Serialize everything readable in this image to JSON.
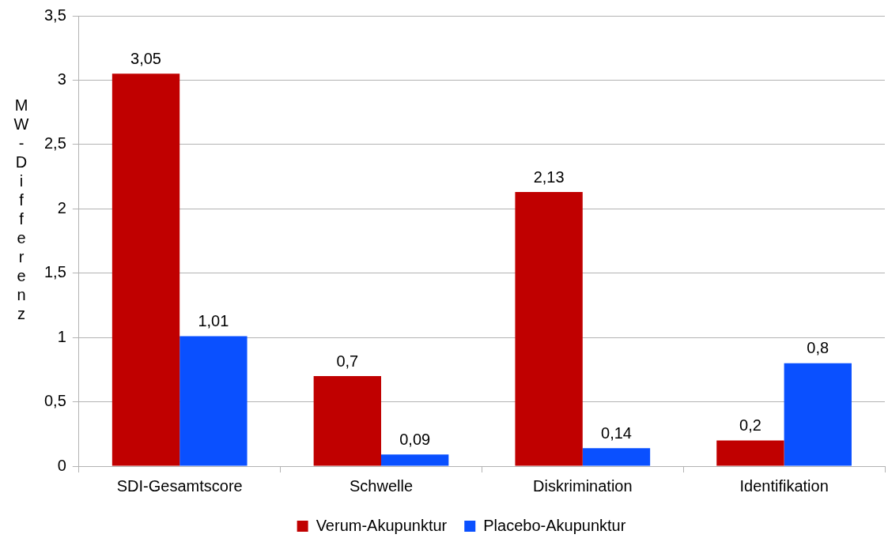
{
  "chart_data": {
    "type": "bar",
    "ylabel": "MW-Differenz",
    "categories": [
      "SDI-Gesamtscore",
      "Schwelle",
      "Diskrimination",
      "Identifikation"
    ],
    "series": [
      {
        "name": "Verum-Akupunktur",
        "color": "#c00000",
        "values": [
          3.05,
          0.7,
          2.13,
          0.2
        ],
        "value_labels": [
          "3,05",
          "0,7",
          "2,13",
          "0,2"
        ]
      },
      {
        "name": "Placebo-Akupunktur",
        "color": "#0a50ff",
        "values": [
          1.01,
          0.09,
          0.14,
          0.8
        ],
        "value_labels": [
          "1,01",
          "0,09",
          "0,14",
          "0,8"
        ]
      }
    ],
    "ylim": [
      0,
      3.5
    ],
    "yticks": [
      0,
      {
        "value": 0.5,
        "label": "0,5"
      },
      1,
      {
        "value": 1.5,
        "label": "1,5"
      },
      2,
      {
        "value": 2.5,
        "label": "2,5"
      },
      3,
      {
        "value": 3.5,
        "label": "3,5"
      }
    ],
    "grid": "y",
    "legend": "bottom"
  }
}
